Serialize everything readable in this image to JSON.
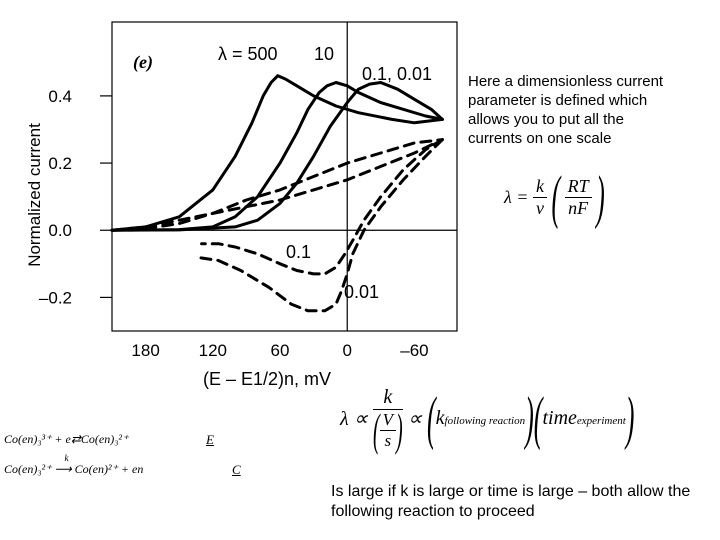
{
  "chart_data": {
    "type": "line",
    "panel_label": "(e)",
    "xlabel": "(E – E1/2)n, mV",
    "ylabel": "Normalized current",
    "x_ticks": [
      180,
      120,
      60,
      0,
      -60
    ],
    "x_tick_labels": [
      "180",
      "120",
      "60",
      "0",
      "–60"
    ],
    "y_ticks": [
      0.4,
      0.2,
      0.0,
      -0.2
    ],
    "y_tick_labels": [
      "0.4",
      "0.2",
      "0.0",
      "–0.2"
    ],
    "xlim": [
      210,
      -98
    ],
    "ylim": [
      -0.3,
      0.62
    ],
    "grid": false,
    "axis_lines": {
      "x": 0,
      "y": 0
    },
    "curve_labels": [
      "λ = 500",
      "10",
      "0.1, 0.01",
      "0.1",
      "0.01"
    ],
    "series": [
      {
        "name": "λ = 500 (forward)",
        "style": "solid",
        "x": [
          210,
          180,
          150,
          120,
          100,
          85,
          75,
          68,
          62,
          55,
          45,
          30,
          10,
          -10,
          -40,
          -60,
          -85
        ],
        "y": [
          0.0,
          0.01,
          0.04,
          0.12,
          0.22,
          0.32,
          0.4,
          0.44,
          0.46,
          0.45,
          0.43,
          0.4,
          0.37,
          0.35,
          0.33,
          0.32,
          0.33
        ]
      },
      {
        "name": "10 (forward)",
        "style": "solid",
        "x": [
          210,
          150,
          120,
          100,
          80,
          60,
          45,
          35,
          25,
          18,
          10,
          0,
          -10,
          -30,
          -50,
          -70,
          -85
        ],
        "y": [
          0.0,
          0.002,
          0.01,
          0.04,
          0.1,
          0.2,
          0.29,
          0.36,
          0.41,
          0.43,
          0.44,
          0.43,
          0.41,
          0.38,
          0.36,
          0.34,
          0.33
        ]
      },
      {
        "name": "0.1, 0.01 (forward)",
        "style": "solid",
        "x": [
          210,
          150,
          100,
          80,
          60,
          45,
          30,
          15,
          0,
          -10,
          -20,
          -30,
          -45,
          -60,
          -75,
          -85
        ],
        "y": [
          0.0,
          0.001,
          0.01,
          0.03,
          0.08,
          0.14,
          0.22,
          0.31,
          0.38,
          0.42,
          0.435,
          0.44,
          0.42,
          0.39,
          0.36,
          0.33
        ]
      },
      {
        "name": "λ = 500 (reverse)",
        "style": "dashed",
        "x": [
          210,
          180,
          150,
          120,
          90,
          60,
          30,
          0,
          -30,
          -60,
          -85
        ],
        "y": [
          0.0,
          0.01,
          0.03,
          0.05,
          0.07,
          0.09,
          0.12,
          0.15,
          0.19,
          0.23,
          0.27
        ]
      },
      {
        "name": "10 (reverse)",
        "style": "dashed",
        "x": [
          210,
          180,
          150,
          120,
          90,
          60,
          30,
          0,
          -30,
          -60,
          -85
        ],
        "y": [
          0.0,
          0.005,
          0.02,
          0.05,
          0.09,
          0.12,
          0.16,
          0.2,
          0.23,
          0.26,
          0.27
        ]
      },
      {
        "name": "0.1 (reverse)",
        "style": "dashed",
        "x": [
          -85,
          -70,
          -50,
          -30,
          -15,
          -5,
          2,
          10,
          20,
          30,
          45,
          60,
          80,
          100,
          115,
          130
        ],
        "y": [
          0.27,
          0.24,
          0.18,
          0.1,
          0.03,
          -0.03,
          -0.07,
          -0.11,
          -0.13,
          -0.13,
          -0.12,
          -0.1,
          -0.07,
          -0.05,
          -0.04,
          -0.04
        ]
      },
      {
        "name": "0.01 (reverse)",
        "style": "dashed",
        "x": [
          -85,
          -70,
          -50,
          -30,
          -15,
          -5,
          0,
          5,
          10,
          20,
          35,
          50,
          70,
          95,
          115,
          135
        ],
        "y": [
          0.27,
          0.22,
          0.15,
          0.07,
          0.0,
          -0.07,
          -0.13,
          -0.18,
          -0.22,
          -0.24,
          -0.24,
          -0.22,
          -0.17,
          -0.12,
          -0.09,
          -0.08
        ]
      }
    ]
  },
  "notes": {
    "description": "Here a dimensionless current parameter is defined which allows you to put all the currents on one scale",
    "lambda_eq": {
      "lhs": "λ =",
      "k": "k",
      "nu": "ν",
      "RT": "RT",
      "nF": "nF"
    },
    "proportional_eq": {
      "lhs": "λ ∝",
      "k": "k",
      "V": "V",
      "s": "s",
      "prop": "∝",
      "k2": "k",
      "k_sub": "following reaction",
      "time": "time",
      "time_sub": "experiment"
    },
    "conclusion": "Is large if k is large or time is large – both allow the following reaction to proceed"
  },
  "reactions": {
    "r1": {
      "left": "Co(en)₃³⁺ + e",
      "arrow": "⇄",
      "right": "Co(en)₃²⁺",
      "tag": "E"
    },
    "r2": {
      "left": "Co(en)₃²⁺",
      "arrow": "⟶",
      "over": "k",
      "right": "Co(en)²⁺ + en",
      "tag": "C"
    }
  }
}
